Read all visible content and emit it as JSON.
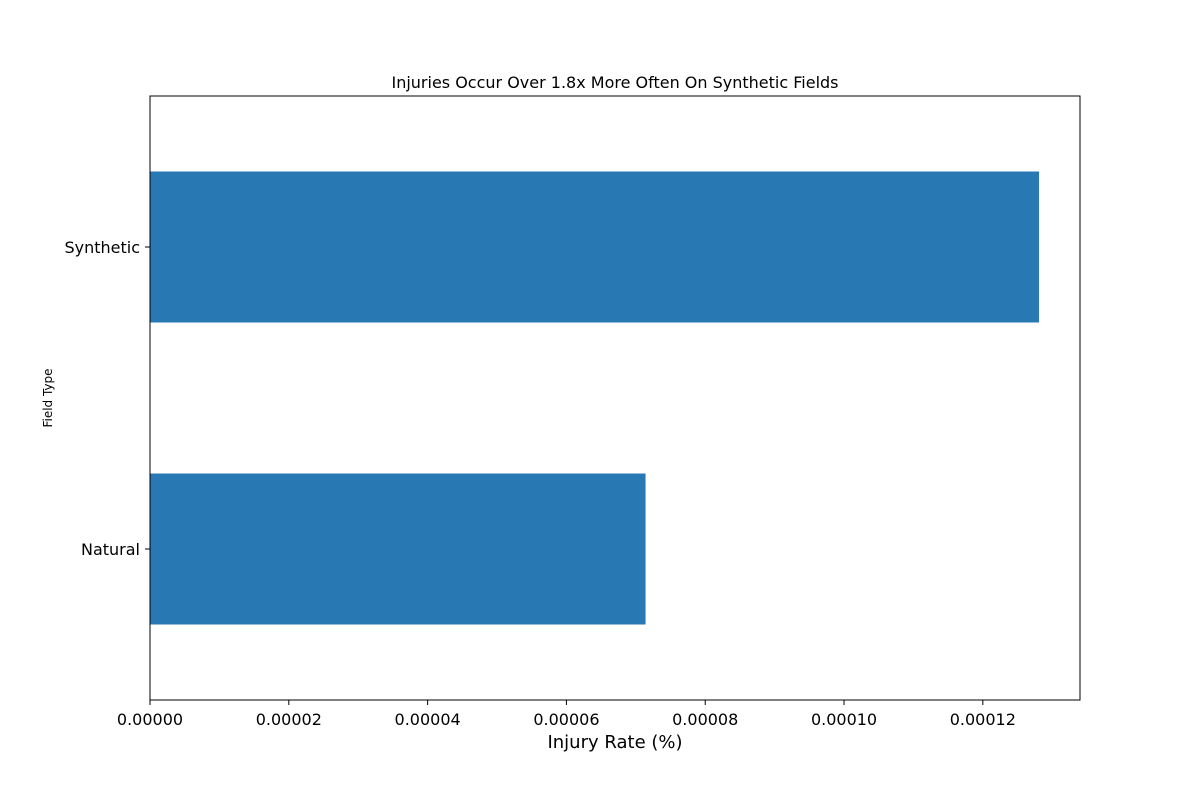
{
  "chart_data": {
    "type": "bar",
    "orientation": "horizontal",
    "title": "Injuries Occur Over 1.8x More Often On Synthetic Fields",
    "xlabel": "Injury Rate (%)",
    "ylabel": "Field Type",
    "categories": [
      "Synthetic",
      "Natural"
    ],
    "values": [
      0.0001281,
      7.14e-05
    ],
    "xlim": [
      0,
      0.000134
    ],
    "xticks": [
      0,
      2e-05,
      4e-05,
      6e-05,
      8e-05,
      0.0001,
      0.00012
    ],
    "xtick_labels": [
      "0.00000",
      "0.00002",
      "0.00004",
      "0.00006",
      "0.00008",
      "0.00010",
      "0.00012"
    ],
    "grid": false,
    "legend": "none",
    "bar_color": "#2878b4"
  }
}
